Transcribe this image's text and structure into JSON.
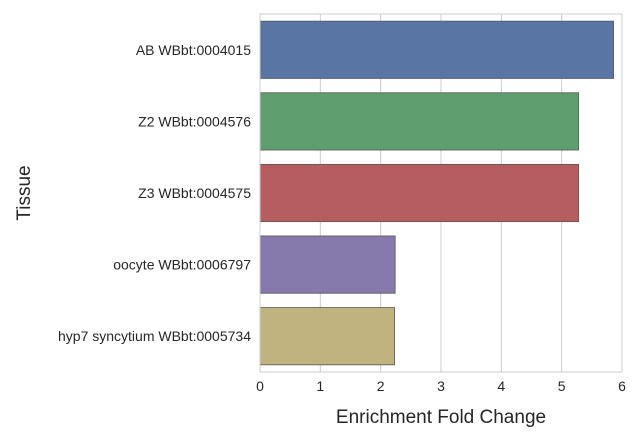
{
  "chart_data": {
    "type": "bar",
    "orientation": "horizontal",
    "title": "",
    "xlabel": "Enrichment Fold Change",
    "ylabel": "Tissue",
    "xlim": [
      0,
      6
    ],
    "xticks": [
      "0",
      "1",
      "2",
      "3",
      "4",
      "5",
      "6"
    ],
    "grid": true,
    "categories": [
      "AB WBbt:0004015",
      "Z2 WBbt:0004576",
      "Z3 WBbt:0004575",
      "oocyte WBbt:0006797",
      "hyp7 syncytium WBbt:0005734"
    ],
    "values": [
      5.86,
      5.28,
      5.28,
      2.24,
      2.23
    ],
    "colors": [
      "#5875a4",
      "#5f9e6e",
      "#b55d60",
      "#857aab",
      "#c1b37f"
    ]
  }
}
